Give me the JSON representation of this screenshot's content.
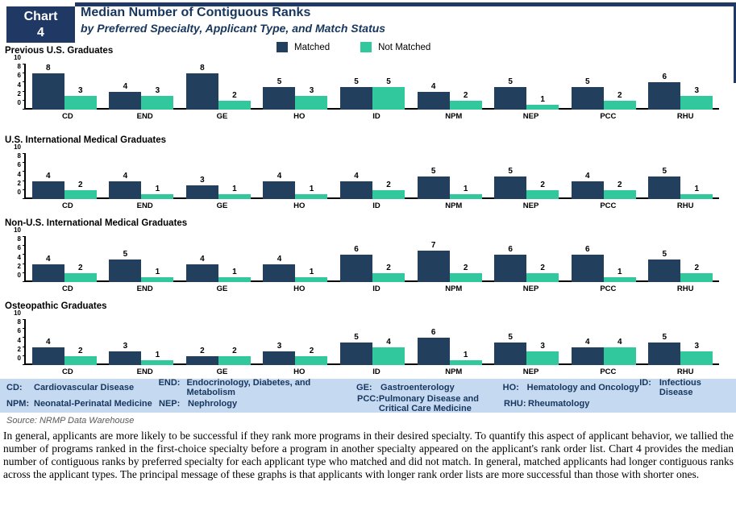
{
  "header": {
    "chart_label": "Chart",
    "chart_number": "4",
    "title": "Median Number of Contiguous Ranks",
    "subtitle": "by Preferred Specialty, Applicant Type, and Match Status"
  },
  "legend": {
    "matched_label": "Matched",
    "not_matched_label": "Not Matched"
  },
  "colors": {
    "matched": "#233F5E",
    "not_matched": "#30C89C",
    "header_navy": "#1F3864",
    "title_text": "#17365D",
    "table_bg": "#C5D9F1",
    "table_text": "#17365D",
    "source_gray": "#595959"
  },
  "chart_data": {
    "type": "bar",
    "categories": [
      "CD",
      "END",
      "GE",
      "HO",
      "ID",
      "NPM",
      "NEP",
      "PCC",
      "RHU"
    ],
    "y_ticks": [
      0,
      2,
      4,
      6,
      8,
      10
    ],
    "ylim": [
      0,
      10
    ],
    "grid": false,
    "legend_position": "top",
    "legend_entries": [
      "Matched",
      "Not Matched"
    ],
    "panels": [
      {
        "title": "Previous U.S. Graduates",
        "series": [
          {
            "name": "Matched",
            "values": [
              8,
              4,
              8,
              5,
              5,
              4,
              5,
              5,
              6
            ]
          },
          {
            "name": "Not Matched",
            "values": [
              3,
              3,
              2,
              3,
              5,
              2,
              1,
              2,
              3
            ]
          }
        ]
      },
      {
        "title": "U.S. International Medical Graduates",
        "series": [
          {
            "name": "Matched",
            "values": [
              4,
              4,
              3,
              4,
              4,
              5,
              5,
              4,
              5
            ]
          },
          {
            "name": "Not Matched",
            "values": [
              2,
              1,
              1,
              1,
              2,
              1,
              2,
              2,
              1
            ]
          }
        ]
      },
      {
        "title": "Non-U.S. International Medical Graduates",
        "series": [
          {
            "name": "Matched",
            "values": [
              4,
              5,
              4,
              4,
              6,
              7,
              6,
              6,
              5
            ]
          },
          {
            "name": "Not Matched",
            "values": [
              2,
              1,
              1,
              1,
              2,
              2,
              2,
              1,
              2
            ]
          }
        ]
      },
      {
        "title": "Osteopathic Graduates",
        "series": [
          {
            "name": "Matched",
            "values": [
              4,
              3,
              2,
              3,
              5,
              6,
              5,
              4,
              5
            ]
          },
          {
            "name": "Not Matched",
            "values": [
              2,
              1,
              2,
              2,
              4,
              1,
              3,
              4,
              3
            ]
          }
        ]
      }
    ]
  },
  "abbreviations": {
    "rows": [
      [
        {
          "abbr": "CD:",
          "label": "Cardiovascular Disease"
        },
        {
          "abbr": "END:",
          "label": "Endocrinology, Diabetes, and Metabolism"
        },
        {
          "abbr": "GE:",
          "label": "Gastroenterology"
        },
        {
          "abbr": "HO:",
          "label": "Hematology and Oncology"
        },
        {
          "abbr": "ID:",
          "label": "Infectious Disease"
        }
      ],
      [
        {
          "abbr": "NPM:",
          "label": "Neonatal-Perinatal Medicine"
        },
        {
          "abbr": "NEP:",
          "label": "Nephrology"
        },
        {
          "abbr": "PCC:",
          "label": "Pulmonary Disease and Critical Care Medicine"
        },
        {
          "abbr": "RHU:",
          "label": "Rheumatology"
        }
      ]
    ]
  },
  "source": "Source: NRMP Data Warehouse",
  "body_text": "In general, applicants are more likely to be successful if they rank more programs in their desired specialty. To quantify this aspect of applicant behavior, we tallied the number of programs ranked in the first-choice specialty before a program in another specialty appeared on the applicant's rank order list. Chart 4 provides the median number of contiguous ranks by preferred specialty for each applicant type who matched and did not match. In general, matched applicants had longer contiguous ranks across the applicant types. The principal message of these graphs is that applicants with longer rank order lists are more successful than those with shorter ones."
}
